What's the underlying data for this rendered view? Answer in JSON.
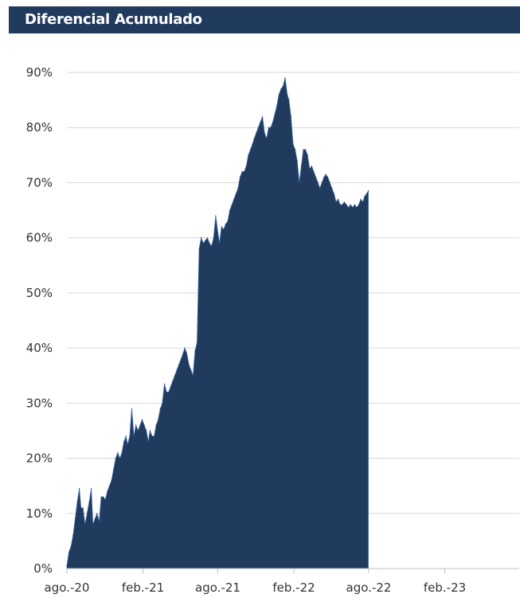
{
  "chart_data": {
    "type": "area",
    "title": "Diferencial Acumulado",
    "xlabel": "",
    "ylabel": "",
    "x_start": "2020-08-01",
    "x_end": "2023-07-31",
    "x_ticks": [
      {
        "label": "ago.-20",
        "date": "2020-08-01"
      },
      {
        "label": "feb.-21",
        "date": "2021-02-01"
      },
      {
        "label": "ago.-21",
        "date": "2021-08-01"
      },
      {
        "label": "feb.-22",
        "date": "2022-02-01"
      },
      {
        "label": "ago.-22",
        "date": "2022-08-01"
      },
      {
        "label": "feb.-23",
        "date": "2023-02-01"
      }
    ],
    "y_ticks": [
      "0%",
      "10%",
      "20%",
      "30%",
      "40%",
      "50%",
      "60%",
      "70%",
      "80%",
      "90%"
    ],
    "ylim": [
      0,
      90
    ],
    "grid": "horizontal",
    "legend": "none",
    "color": "#213b5e",
    "series": [
      {
        "points": [
          [
            "2020-08-01",
            0.5
          ],
          [
            "2020-08-06",
            3
          ],
          [
            "2020-08-11",
            4
          ],
          [
            "2020-08-16",
            6
          ],
          [
            "2020-08-21",
            9
          ],
          [
            "2020-08-26",
            12
          ],
          [
            "2020-08-31",
            14.5
          ],
          [
            "2020-09-04",
            11
          ],
          [
            "2020-09-09",
            11
          ],
          [
            "2020-09-14",
            8
          ],
          [
            "2020-09-19",
            10
          ],
          [
            "2020-09-24",
            12
          ],
          [
            "2020-09-29",
            14.5
          ],
          [
            "2020-10-03",
            8
          ],
          [
            "2020-10-08",
            9
          ],
          [
            "2020-10-13",
            10
          ],
          [
            "2020-10-18",
            8.5
          ],
          [
            "2020-10-23",
            13
          ],
          [
            "2020-10-28",
            13
          ],
          [
            "2020-11-02",
            12.5
          ],
          [
            "2020-11-07",
            14
          ],
          [
            "2020-11-12",
            15
          ],
          [
            "2020-11-17",
            16
          ],
          [
            "2020-11-22",
            18
          ],
          [
            "2020-11-27",
            20
          ],
          [
            "2020-12-02",
            21
          ],
          [
            "2020-12-07",
            20
          ],
          [
            "2020-12-12",
            21
          ],
          [
            "2020-12-17",
            23
          ],
          [
            "2020-12-22",
            24
          ],
          [
            "2020-12-26",
            22.5
          ],
          [
            "2020-12-31",
            24
          ],
          [
            "2021-01-05",
            29
          ],
          [
            "2021-01-10",
            24
          ],
          [
            "2021-01-15",
            26
          ],
          [
            "2021-01-20",
            25
          ],
          [
            "2021-01-25",
            26
          ],
          [
            "2021-01-30",
            27
          ],
          [
            "2021-02-04",
            26
          ],
          [
            "2021-02-09",
            25
          ],
          [
            "2021-02-14",
            23
          ],
          [
            "2021-02-18",
            25
          ],
          [
            "2021-02-23",
            24
          ],
          [
            "2021-02-28",
            24
          ],
          [
            "2021-03-05",
            26
          ],
          [
            "2021-03-10",
            27
          ],
          [
            "2021-03-15",
            29
          ],
          [
            "2021-03-20",
            30
          ],
          [
            "2021-03-25",
            33.5
          ],
          [
            "2021-03-30",
            32
          ],
          [
            "2021-04-04",
            32
          ],
          [
            "2021-04-09",
            33
          ],
          [
            "2021-04-14",
            34
          ],
          [
            "2021-04-19",
            35
          ],
          [
            "2021-04-24",
            36
          ],
          [
            "2021-04-29",
            37
          ],
          [
            "2021-05-04",
            38
          ],
          [
            "2021-05-09",
            39
          ],
          [
            "2021-05-13",
            40
          ],
          [
            "2021-05-18",
            39
          ],
          [
            "2021-05-23",
            37
          ],
          [
            "2021-05-28",
            36
          ],
          [
            "2021-06-02",
            35
          ],
          [
            "2021-06-07",
            39.5
          ],
          [
            "2021-06-12",
            41
          ],
          [
            "2021-06-17",
            58
          ],
          [
            "2021-06-22",
            60
          ],
          [
            "2021-06-27",
            59
          ],
          [
            "2021-07-02",
            59.5
          ],
          [
            "2021-07-07",
            60
          ],
          [
            "2021-07-12",
            59
          ],
          [
            "2021-07-17",
            58.5
          ],
          [
            "2021-07-22",
            60
          ],
          [
            "2021-07-27",
            64
          ],
          [
            "2021-08-01",
            61
          ],
          [
            "2021-08-05",
            59
          ],
          [
            "2021-08-10",
            62
          ],
          [
            "2021-08-15",
            61.5
          ],
          [
            "2021-08-20",
            62.5
          ],
          [
            "2021-08-25",
            63
          ],
          [
            "2021-08-30",
            65
          ],
          [
            "2021-09-04",
            66
          ],
          [
            "2021-09-09",
            67
          ],
          [
            "2021-09-14",
            68
          ],
          [
            "2021-09-19",
            69
          ],
          [
            "2021-09-24",
            71
          ],
          [
            "2021-09-29",
            72
          ],
          [
            "2021-10-04",
            72
          ],
          [
            "2021-10-09",
            73
          ],
          [
            "2021-10-14",
            75
          ],
          [
            "2021-10-19",
            76
          ],
          [
            "2021-10-24",
            77
          ],
          [
            "2021-10-28",
            78
          ],
          [
            "2021-11-02",
            79
          ],
          [
            "2021-11-07",
            80
          ],
          [
            "2021-11-12",
            81
          ],
          [
            "2021-11-17",
            82
          ],
          [
            "2021-11-22",
            79
          ],
          [
            "2021-11-27",
            78
          ],
          [
            "2021-12-02",
            80
          ],
          [
            "2021-12-07",
            80
          ],
          [
            "2021-12-12",
            81
          ],
          [
            "2021-12-17",
            82.5
          ],
          [
            "2021-12-22",
            84
          ],
          [
            "2021-12-27",
            86
          ],
          [
            "2022-01-01",
            87
          ],
          [
            "2022-01-06",
            87.5
          ],
          [
            "2022-01-11",
            89
          ],
          [
            "2022-01-16",
            86
          ],
          [
            "2022-01-20",
            85
          ],
          [
            "2022-01-25",
            82
          ],
          [
            "2022-01-30",
            77
          ],
          [
            "2022-02-04",
            76
          ],
          [
            "2022-02-09",
            74
          ],
          [
            "2022-02-14",
            70
          ],
          [
            "2022-02-19",
            73
          ],
          [
            "2022-02-24",
            76
          ],
          [
            "2022-03-01",
            76
          ],
          [
            "2022-03-06",
            75
          ],
          [
            "2022-03-11",
            72.5
          ],
          [
            "2022-03-16",
            73
          ],
          [
            "2022-03-21",
            72
          ],
          [
            "2022-03-26",
            71
          ],
          [
            "2022-03-31",
            70
          ],
          [
            "2022-04-05",
            69
          ],
          [
            "2022-04-10",
            70
          ],
          [
            "2022-04-15",
            71
          ],
          [
            "2022-04-19",
            71.5
          ],
          [
            "2022-04-24",
            71
          ],
          [
            "2022-04-29",
            70
          ],
          [
            "2022-05-04",
            69
          ],
          [
            "2022-05-09",
            68
          ],
          [
            "2022-05-14",
            66.5
          ],
          [
            "2022-05-19",
            67
          ],
          [
            "2022-05-24",
            66
          ],
          [
            "2022-05-29",
            66
          ],
          [
            "2022-06-03",
            66.5
          ],
          [
            "2022-06-08",
            66
          ],
          [
            "2022-06-13",
            65.5
          ],
          [
            "2022-06-18",
            66
          ],
          [
            "2022-06-23",
            65.5
          ],
          [
            "2022-06-28",
            66
          ],
          [
            "2022-07-03",
            65.5
          ],
          [
            "2022-07-08",
            66
          ],
          [
            "2022-07-13",
            67
          ],
          [
            "2022-07-18",
            66.5
          ],
          [
            "2022-07-22",
            67.5
          ],
          [
            "2022-07-27",
            68
          ],
          [
            "2022-07-31",
            68.5
          ]
        ]
      }
    ]
  }
}
